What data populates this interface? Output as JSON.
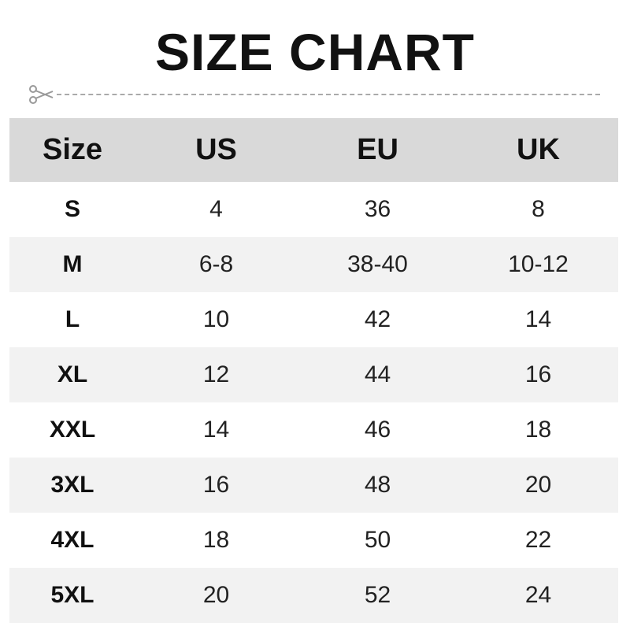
{
  "title": "SIZE CHART",
  "icons": {
    "cut": "scissors-icon"
  },
  "colors": {
    "header_bg": "#d9d9d9",
    "alt_row_bg": "#f2f2f2"
  },
  "headers": [
    "Size",
    "US",
    "EU",
    "UK"
  ],
  "rows": [
    [
      "S",
      "4",
      "36",
      "8"
    ],
    [
      "M",
      "6-8",
      "38-40",
      "10-12"
    ],
    [
      "L",
      "10",
      "42",
      "14"
    ],
    [
      "XL",
      "12",
      "44",
      "16"
    ],
    [
      "XXL",
      "14",
      "46",
      "18"
    ],
    [
      "3XL",
      "16",
      "48",
      "20"
    ],
    [
      "4XL",
      "18",
      "50",
      "22"
    ],
    [
      "5XL",
      "20",
      "52",
      "24"
    ]
  ]
}
